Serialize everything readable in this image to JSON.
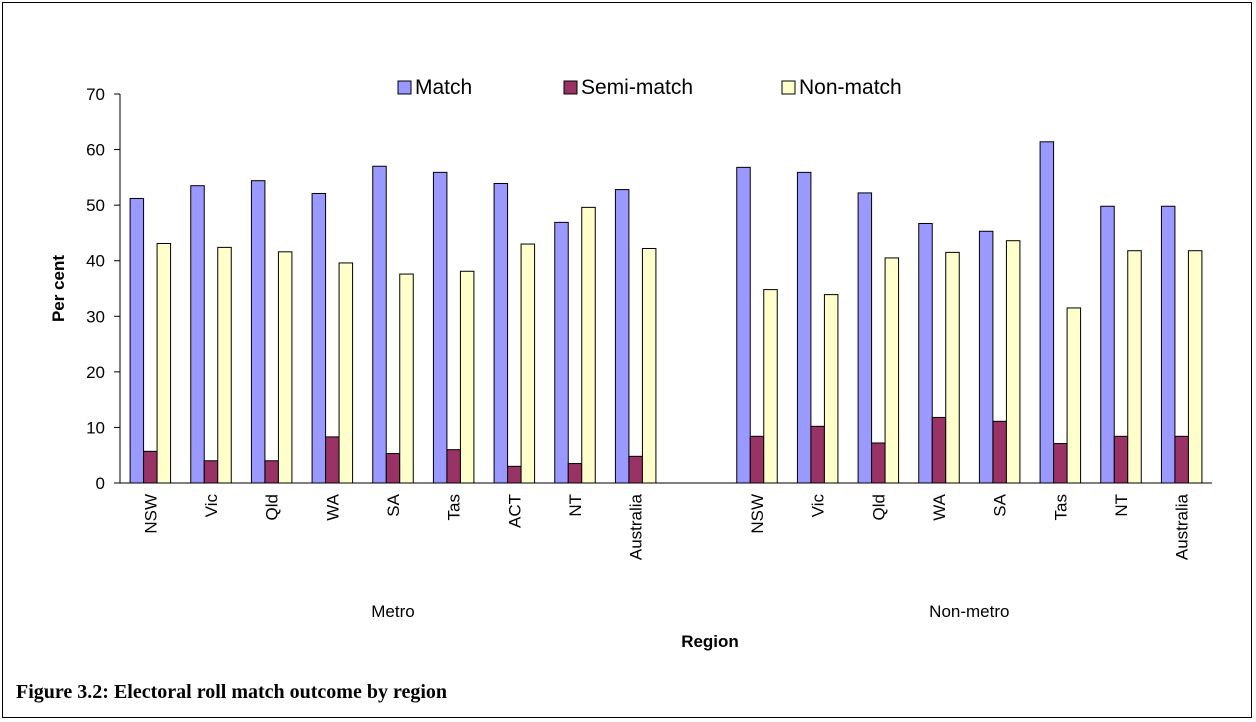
{
  "figure": {
    "caption": "Figure 3.2: Electoral roll match outcome by region"
  },
  "colors": {
    "match": "#9999ff",
    "semi_match": "#993366",
    "non_match": "#ffffcc",
    "outline": "#000000"
  },
  "chart_data": {
    "type": "bar",
    "title": "",
    "xlabel": "Region",
    "ylabel": "Per cent",
    "ylim": [
      0,
      70
    ],
    "yticks": [
      0,
      10,
      20,
      30,
      40,
      50,
      60,
      70
    ],
    "grid": false,
    "legend_position": "top",
    "groups": [
      {
        "label": "Metro",
        "categories": [
          "NSW",
          "Vic",
          "Qld",
          "WA",
          "SA",
          "Tas",
          "ACT",
          "NT",
          "Australia"
        ]
      },
      {
        "label": "Non-metro",
        "categories": [
          "NSW",
          "Vic",
          "Qld",
          "WA",
          "SA",
          "Tas",
          "NT",
          "Australia"
        ]
      }
    ],
    "series": [
      {
        "name": "Match",
        "color_key": "match",
        "values": [
          51.2,
          53.5,
          54.4,
          52.1,
          57.0,
          55.9,
          53.9,
          46.9,
          52.8,
          56.8,
          55.9,
          52.2,
          46.7,
          45.3,
          61.4,
          49.8,
          49.8
        ]
      },
      {
        "name": "Semi-match",
        "color_key": "semi_match",
        "values": [
          5.7,
          4.0,
          4.0,
          8.3,
          5.3,
          6.0,
          3.0,
          3.5,
          4.8,
          8.4,
          10.2,
          7.2,
          11.8,
          11.1,
          7.1,
          8.4,
          8.4
        ]
      },
      {
        "name": "Non-match",
        "color_key": "non_match",
        "values": [
          43.1,
          42.4,
          41.6,
          39.6,
          37.6,
          38.1,
          43.0,
          49.6,
          42.2,
          34.8,
          33.9,
          40.5,
          41.5,
          43.6,
          31.5,
          41.8,
          41.8
        ]
      }
    ]
  }
}
